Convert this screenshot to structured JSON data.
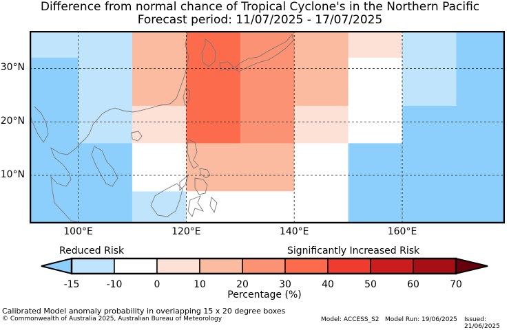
{
  "title_line1": "Difference from normal chance of Tropical Cyclone's in the Northern Pacific",
  "title_line2": "Forecast period: 11/07/2025 - 17/07/2025",
  "lat_labels": [
    "30°N",
    "20°N",
    "10°N"
  ],
  "lon_labels": [
    "100°E",
    "120°E",
    "140°E",
    "160°E"
  ],
  "legend": {
    "low_label": "Reduced Risk",
    "high_label": "Significantly Increased Risk",
    "ticks": [
      "-15",
      "-10",
      "0",
      "10",
      "20",
      "30",
      "40",
      "50",
      "60",
      "70"
    ],
    "colors": [
      "#c0e4fb",
      "#ffffff",
      "#fde0d6",
      "#fbbba0",
      "#fa9273",
      "#fb6b4c",
      "#ef3c2f",
      "#cb1c1e",
      "#a60f15"
    ],
    "under_color": "#8dcffc",
    "over_color": "#67000d",
    "unit_label": "Percentage (%)"
  },
  "map": {
    "lon_range": [
      91,
      179
    ],
    "lat_range": [
      1,
      37
    ],
    "grid_lons": [
      100,
      120,
      140,
      160
    ],
    "grid_lats": [
      10,
      20,
      30
    ],
    "cells": [
      {
        "lon": [
          91,
          110
        ],
        "lat": [
          32,
          37
        ],
        "value": -15
      },
      {
        "lon": [
          91,
          100
        ],
        "lat": [
          27,
          32
        ],
        "value": -20
      },
      {
        "lon": [
          100,
          110
        ],
        "lat": [
          27,
          32
        ],
        "value": -15
      },
      {
        "lon": [
          91,
          100
        ],
        "lat": [
          16,
          27
        ],
        "value": -20
      },
      {
        "lon": [
          100,
          110
        ],
        "lat": [
          16,
          27
        ],
        "value": -15
      },
      {
        "lon": [
          91,
          110
        ],
        "lat": [
          1,
          16
        ],
        "value": -20
      },
      {
        "lon": [
          110,
          120
        ],
        "lat": [
          23,
          37
        ],
        "value": 15
      },
      {
        "lon": [
          110,
          120
        ],
        "lat": [
          16,
          23
        ],
        "value": 5
      },
      {
        "lon": [
          110,
          120
        ],
        "lat": [
          7,
          16
        ],
        "value": -5
      },
      {
        "lon": [
          110,
          120
        ],
        "lat": [
          1,
          7
        ],
        "value": -15
      },
      {
        "lon": [
          120,
          130
        ],
        "lat": [
          16,
          37
        ],
        "value": 35
      },
      {
        "lon": [
          120,
          130
        ],
        "lat": [
          7,
          16
        ],
        "value": 15
      },
      {
        "lon": [
          120,
          130
        ],
        "lat": [
          1,
          7
        ],
        "value": -5
      },
      {
        "lon": [
          130,
          140
        ],
        "lat": [
          16,
          37
        ],
        "value": 25
      },
      {
        "lon": [
          130,
          140
        ],
        "lat": [
          7,
          16
        ],
        "value": 15
      },
      {
        "lon": [
          130,
          140
        ],
        "lat": [
          1,
          7
        ],
        "value": -5
      },
      {
        "lon": [
          140,
          150
        ],
        "lat": [
          23,
          37
        ],
        "value": 15
      },
      {
        "lon": [
          140,
          150
        ],
        "lat": [
          16,
          23
        ],
        "value": 5
      },
      {
        "lon": [
          140,
          150
        ],
        "lat": [
          1,
          16
        ],
        "value": -5
      },
      {
        "lon": [
          150,
          160
        ],
        "lat": [
          32,
          37
        ],
        "value": 5
      },
      {
        "lon": [
          150,
          160
        ],
        "lat": [
          16,
          32
        ],
        "value": -5
      },
      {
        "lon": [
          150,
          160
        ],
        "lat": [
          1,
          16
        ],
        "value": -20
      },
      {
        "lon": [
          160,
          170
        ],
        "lat": [
          23,
          37
        ],
        "value": -15
      },
      {
        "lon": [
          160,
          170
        ],
        "lat": [
          1,
          23
        ],
        "value": -20
      },
      {
        "lon": [
          170,
          179
        ],
        "lat": [
          1,
          37
        ],
        "value": -20
      }
    ]
  },
  "footer": {
    "description": "Calibrated Model anomaly probability in overlapping 15 x 20 degree boxes",
    "copyright": "© Commonwealth of Australia 2025, Australian Bureau of Meteorology",
    "model": "Model: ACCESS_S2",
    "model_run": "Model Run: 19/06/2025",
    "issued": "Issued: 21/06/2025"
  }
}
